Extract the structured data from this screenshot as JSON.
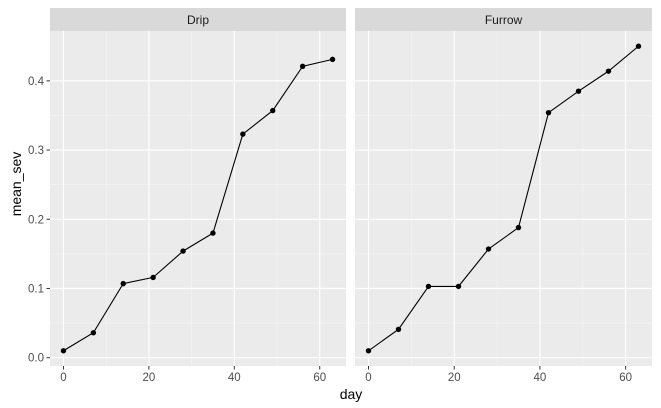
{
  "chart_data": {
    "type": "line",
    "xlabel": "day",
    "ylabel": "mean_sev",
    "x_ticks": [
      0,
      20,
      40,
      60
    ],
    "y_ticks": [
      0.0,
      0.1,
      0.2,
      0.3,
      0.4
    ],
    "y_tick_labels": [
      "0.0",
      "0.1",
      "0.2",
      "0.3",
      "0.4"
    ],
    "xlim": [
      -3.15,
      66.15
    ],
    "ylim": [
      -0.012,
      0.472
    ],
    "grid": true,
    "facets": [
      {
        "label": "Drip",
        "x": [
          0,
          7,
          14,
          21,
          28,
          35,
          42,
          49,
          56,
          63
        ],
        "y": [
          0.01,
          0.036,
          0.107,
          0.116,
          0.154,
          0.18,
          0.323,
          0.357,
          0.421,
          0.431
        ]
      },
      {
        "label": "Furrow",
        "x": [
          0,
          7,
          14,
          21,
          28,
          35,
          42,
          49,
          56,
          63
        ],
        "y": [
          0.01,
          0.041,
          0.103,
          0.103,
          0.157,
          0.188,
          0.354,
          0.385,
          0.414,
          0.45
        ]
      }
    ],
    "colors": {
      "panel_background": "#ebebeb",
      "strip_background": "#d9d9d9",
      "grid_major": "#ffffff",
      "grid_minor": "#f5f5f5",
      "line": "#000000",
      "point": "#000000",
      "axis_text": "#4d4d4d",
      "strip_text": "#1a1a1a",
      "title_text": "#000000"
    }
  }
}
